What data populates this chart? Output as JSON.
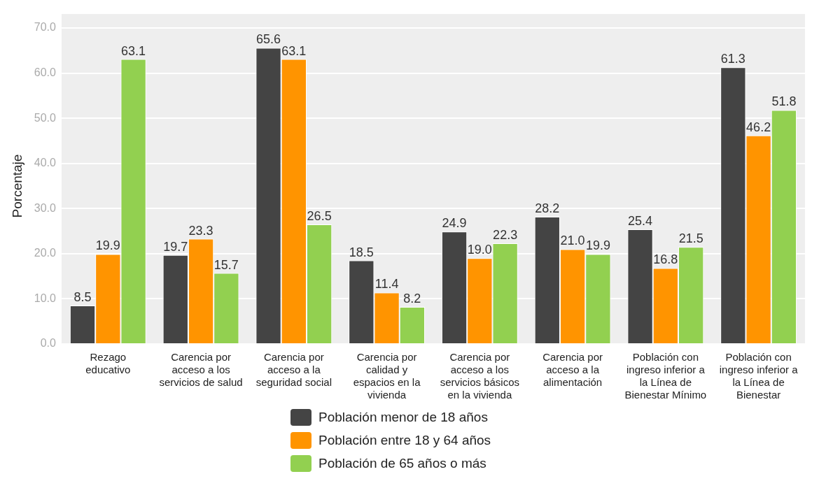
{
  "chart_data": {
    "type": "bar",
    "ylabel": "Porcentaje",
    "categories": [
      "Rezago educativo",
      "Carencia por acceso a los servicios de salud",
      "Carencia por acceso a la seguridad social",
      "Carencia por calidad y espacios en la vivienda",
      "Carencia por acceso a los servicios básicos en la vivienda",
      "Carencia por acceso a la alimentación",
      "Población con ingreso inferior a la Línea de Bienestar Mínimo",
      "Población con ingreso inferior a la Línea de Bienestar"
    ],
    "series": [
      {
        "name": "Población menor de 18 años",
        "color": "#444444",
        "values": [
          8.5,
          19.7,
          65.6,
          18.5,
          24.9,
          28.2,
          25.4,
          61.3
        ],
        "value_labels": [
          "8.5",
          "19.7",
          "65.6",
          "18.5",
          "24.9",
          "28.2",
          "25.4",
          "61.3"
        ]
      },
      {
        "name": "Población entre 18 y 64 años",
        "color": "#ff9400",
        "values": [
          19.9,
          23.3,
          63.1,
          11.4,
          19.0,
          21.0,
          16.8,
          46.2
        ],
        "value_labels": [
          "19.9",
          "23.3",
          "63.1",
          "11.4",
          "19.0",
          "21.0",
          "16.8",
          "46.2"
        ]
      },
      {
        "name": "Población de 65 años o más",
        "color": "#92d050",
        "values": [
          63.1,
          15.7,
          26.5,
          8.2,
          22.3,
          19.9,
          21.5,
          51.8
        ],
        "value_labels": [
          "63.1",
          "15.7",
          "26.5",
          "8.2",
          "22.3",
          "19.9",
          "21.5",
          "51.8"
        ]
      }
    ],
    "ylim": [
      0,
      70
    ],
    "yticks": [
      {
        "value": 0,
        "label": "0.0"
      },
      {
        "value": 10,
        "label": "10.0"
      },
      {
        "value": 20,
        "label": "20.0"
      },
      {
        "value": 30,
        "label": "30.0"
      },
      {
        "value": 40,
        "label": "40.0"
      },
      {
        "value": 50,
        "label": "50.0"
      },
      {
        "value": 60,
        "label": "60.0"
      },
      {
        "value": 70,
        "label": "70.0"
      }
    ],
    "grid": "y",
    "legend": "bottom"
  }
}
